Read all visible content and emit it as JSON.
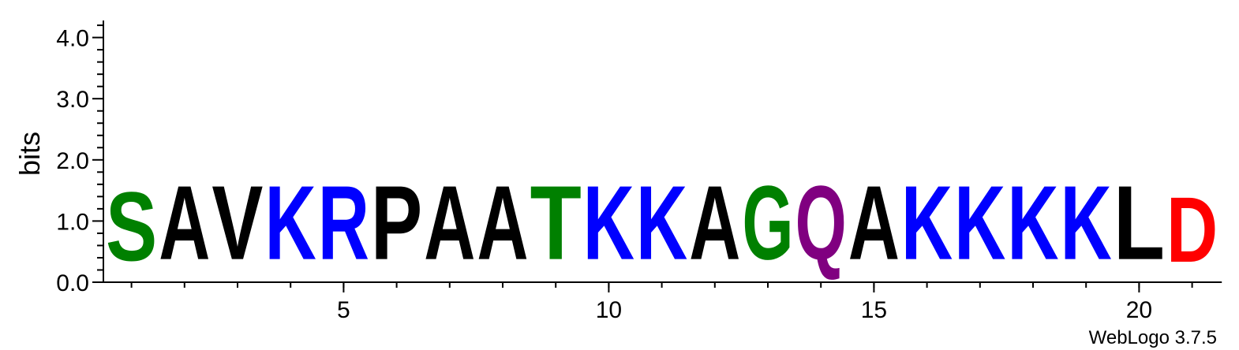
{
  "chart_data": {
    "type": "sequence-logo",
    "ylabel": "bits",
    "ylim": [
      0,
      4.3
    ],
    "y_ticks": [
      "0.0",
      "1.0",
      "2.0",
      "3.0",
      "4.0"
    ],
    "x_ticks": [
      "5",
      "10",
      "15",
      "20"
    ],
    "positions": [
      {
        "pos": 1,
        "letter": "S",
        "bits": 1.8,
        "color": "#008000"
      },
      {
        "pos": 2,
        "letter": "A",
        "bits": 1.93,
        "color": "#000000"
      },
      {
        "pos": 3,
        "letter": "V",
        "bits": 1.93,
        "color": "#000000"
      },
      {
        "pos": 4,
        "letter": "K",
        "bits": 1.93,
        "color": "#0000ff"
      },
      {
        "pos": 5,
        "letter": "R",
        "bits": 1.93,
        "color": "#0000ff"
      },
      {
        "pos": 6,
        "letter": "P",
        "bits": 1.93,
        "color": "#000000"
      },
      {
        "pos": 7,
        "letter": "A",
        "bits": 1.93,
        "color": "#000000"
      },
      {
        "pos": 8,
        "letter": "A",
        "bits": 1.93,
        "color": "#000000"
      },
      {
        "pos": 9,
        "letter": "T",
        "bits": 1.93,
        "color": "#008000"
      },
      {
        "pos": 10,
        "letter": "K",
        "bits": 1.93,
        "color": "#0000ff"
      },
      {
        "pos": 11,
        "letter": "K",
        "bits": 1.93,
        "color": "#0000ff"
      },
      {
        "pos": 12,
        "letter": "A",
        "bits": 1.93,
        "color": "#000000"
      },
      {
        "pos": 13,
        "letter": "G",
        "bits": 1.93,
        "color": "#008000"
      },
      {
        "pos": 14,
        "letter": "Q",
        "bits": 1.93,
        "color": "#800080"
      },
      {
        "pos": 15,
        "letter": "A",
        "bits": 1.93,
        "color": "#000000"
      },
      {
        "pos": 16,
        "letter": "K",
        "bits": 1.93,
        "color": "#0000ff"
      },
      {
        "pos": 17,
        "letter": "K",
        "bits": 1.93,
        "color": "#0000ff"
      },
      {
        "pos": 18,
        "letter": "K",
        "bits": 1.93,
        "color": "#0000ff"
      },
      {
        "pos": 19,
        "letter": "K",
        "bits": 1.93,
        "color": "#0000ff"
      },
      {
        "pos": 20,
        "letter": "L",
        "bits": 1.93,
        "color": "#000000"
      },
      {
        "pos": 21,
        "letter": "D",
        "bits": 1.7,
        "color": "#ff0000"
      }
    ]
  },
  "footer": {
    "credit": "WebLogo 3.7.5"
  }
}
